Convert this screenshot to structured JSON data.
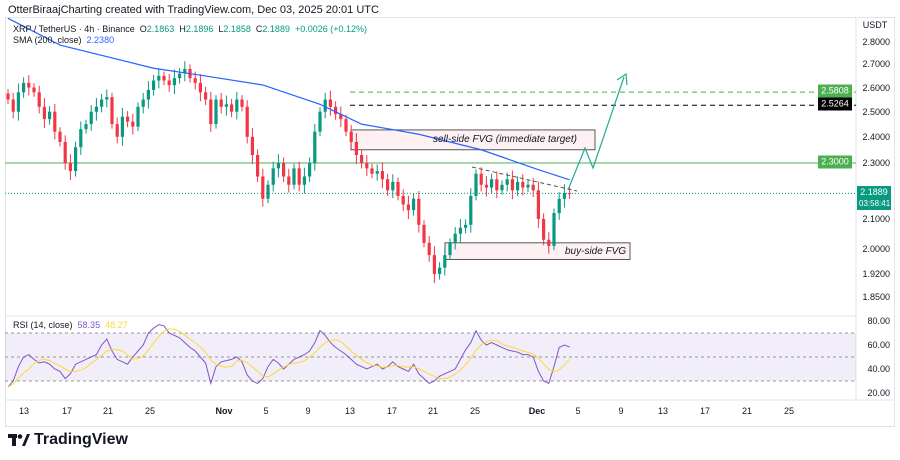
{
  "credit": "OtterBiraajCharting created with TradingView.com, Dec 03, 2025 20:01 UTC",
  "legend": {
    "symbol": "XRP / TetherUS · 4h · Binance",
    "o_label": "O",
    "o": "2.1863",
    "h_label": "H",
    "h": "2.1896",
    "l_label": "L",
    "l": "2.1858",
    "c_label": "C",
    "c": "2.1889",
    "change": "+0.0026 (+0.12%)",
    "sma_label": "SMA (200, close)",
    "sma_value": "2.2380",
    "rsi_label": "RSI (14, close)",
    "rsi_value": "58.35",
    "rsi_ma_value": "48.27"
  },
  "currency": "USDT",
  "price_labels": {
    "level_2_5808": "2.5808",
    "level_2_5264": "2.5264",
    "level_2_3000": "2.3000",
    "last_price": "2.1889",
    "countdown": "03:58:41"
  },
  "annotations": {
    "sell_side": "sell-side FVG (immediate target)",
    "buy_side": "buy-side FVG"
  },
  "logo": "TradingView",
  "colors": {
    "up": "#089981",
    "down": "#f23645",
    "sma": "#2962ff",
    "rsi": "#7e57c2",
    "rsi_ma": "#fdd835",
    "level_green": "#4caf50",
    "arrow": "#22ab94"
  },
  "chart_data": {
    "type": "candlestick",
    "scale": "log",
    "y_ticks": [
      "2.8000",
      "2.7000",
      "2.6000",
      "2.5000",
      "2.4000",
      "2.3000",
      "2.1000",
      "2.0000",
      "1.9200",
      "1.8500"
    ],
    "x_ticks": [
      "13",
      "17",
      "21",
      "25",
      "Nov",
      "5",
      "9",
      "13",
      "17",
      "21",
      "25",
      "Dec",
      "5",
      "9",
      "13",
      "17",
      "21",
      "25"
    ],
    "x_start": "2025-10-11 12:00",
    "x_step_hours": 12,
    "closes": [
      2.55,
      2.5,
      2.58,
      2.62,
      2.6,
      2.58,
      2.52,
      2.47,
      2.5,
      2.42,
      2.38,
      2.3,
      2.27,
      2.36,
      2.43,
      2.45,
      2.5,
      2.52,
      2.55,
      2.56,
      2.45,
      2.4,
      2.48,
      2.46,
      2.44,
      2.52,
      2.55,
      2.59,
      2.63,
      2.65,
      2.63,
      2.61,
      2.64,
      2.66,
      2.68,
      2.64,
      2.62,
      2.58,
      2.55,
      2.45,
      2.55,
      2.52,
      2.53,
      2.5,
      2.55,
      2.52,
      2.4,
      2.33,
      2.25,
      2.17,
      2.22,
      2.28,
      2.3,
      2.25,
      2.22,
      2.28,
      2.22,
      2.25,
      2.3,
      2.42,
      2.5,
      2.55,
      2.52,
      2.49,
      2.47,
      2.42,
      2.38,
      2.33,
      2.3,
      2.28,
      2.26,
      2.27,
      2.24,
      2.2,
      2.23,
      2.18,
      2.15,
      2.13,
      2.17,
      2.08,
      2.02,
      1.98,
      1.92,
      1.94,
      1.98,
      2.02,
      2.05,
      2.07,
      2.08,
      2.18,
      2.26,
      2.22,
      2.21,
      2.24,
      2.2,
      2.22,
      2.24,
      2.2,
      2.23,
      2.21,
      2.22,
      2.2,
      2.1,
      2.03,
      2.01,
      2.12,
      2.17,
      2.19,
      2.1889
    ],
    "sma200": [
      [
        0,
        2.91
      ],
      [
        10,
        2.786
      ],
      [
        28,
        2.683
      ],
      [
        37,
        2.653
      ],
      [
        49,
        2.611
      ],
      [
        60,
        2.53
      ],
      [
        68,
        2.45
      ],
      [
        79,
        2.41
      ],
      [
        91,
        2.35
      ],
      [
        102,
        2.275
      ],
      [
        108,
        2.238
      ]
    ],
    "levels": {
      "dashed_green": 2.5808,
      "dashed_black": 2.5264,
      "solid_green": 2.3,
      "last": 2.1889
    },
    "zones": {
      "sell_side_fvg": [
        2.35,
        2.427
      ],
      "buy_side_fvg": [
        1.966,
        2.02
      ]
    },
    "rsi": {
      "values": [
        25,
        30,
        42,
        50,
        52,
        48,
        45,
        46,
        44,
        40,
        38,
        32,
        36,
        44,
        46,
        48,
        50,
        52,
        60,
        65,
        55,
        48,
        46,
        44,
        50,
        55,
        60,
        70,
        74,
        77,
        76,
        70,
        68,
        66,
        62,
        58,
        55,
        50,
        45,
        28,
        42,
        46,
        47,
        48,
        50,
        46,
        35,
        30,
        28,
        32,
        42,
        48,
        45,
        40,
        44,
        48,
        50,
        52,
        55,
        62,
        72,
        68,
        62,
        58,
        55,
        52,
        48,
        44,
        42,
        40,
        42,
        44,
        40,
        42,
        46,
        42,
        40,
        38,
        44,
        36,
        32,
        28,
        30,
        34,
        36,
        38,
        40,
        48,
        56,
        62,
        72,
        64,
        60,
        62,
        60,
        58,
        56,
        55,
        54,
        52,
        52,
        50,
        38,
        30,
        28,
        42,
        58,
        60,
        58.35
      ],
      "ticks": [
        "80.00",
        "60.00",
        "40.00",
        "20.00"
      ],
      "bands": [
        70,
        50,
        30
      ]
    }
  }
}
